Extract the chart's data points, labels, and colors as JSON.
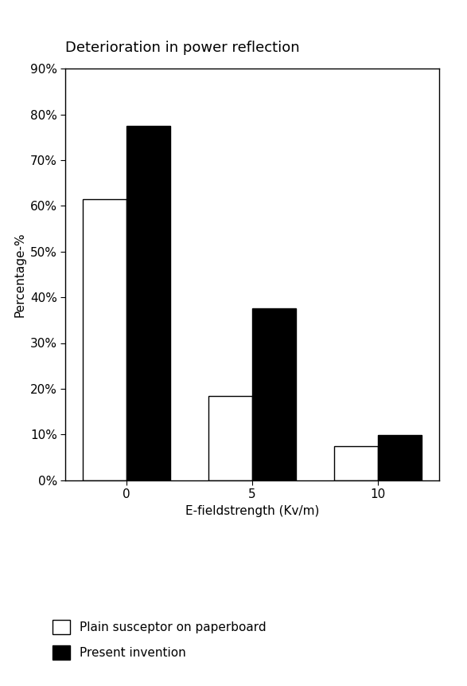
{
  "title": "Deterioration in power reflection",
  "category_labels": [
    "0",
    "5",
    "10"
  ],
  "series1_label": "Plain susceptor on paperboard",
  "series1_values": [
    0.615,
    0.185,
    0.075
  ],
  "series1_color": "#ffffff",
  "series1_edgecolor": "#000000",
  "series2_label": "Present invention",
  "series2_values": [
    0.775,
    0.375,
    0.098
  ],
  "series2_color": "#000000",
  "series2_edgecolor": "#000000",
  "ylabel": "Percentage-%",
  "xlabel": "E-fieldstrength (Kv/m)",
  "ylim": [
    0,
    0.9
  ],
  "yticks": [
    0.0,
    0.1,
    0.2,
    0.3,
    0.4,
    0.5,
    0.6,
    0.7,
    0.8,
    0.9
  ],
  "ytick_labels": [
    "0%",
    "10%",
    "20%",
    "30%",
    "40%",
    "50%",
    "60%",
    "70%",
    "80%",
    "90%"
  ],
  "bar_width": 0.35,
  "group_positions": [
    0,
    1,
    2
  ],
  "background_color": "#ffffff",
  "title_fontsize": 13,
  "label_fontsize": 11,
  "tick_fontsize": 11,
  "legend_fontsize": 11
}
